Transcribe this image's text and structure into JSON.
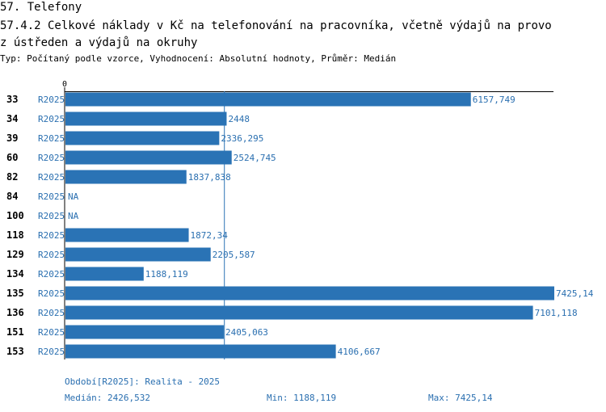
{
  "header": {
    "title": "57. Telefony",
    "subtitle_line1": "57.4.2 Celkové náklady v Kč na telefonování na pracovníka, včetně výdajů na provo",
    "subtitle_line2": "z ústředen a výdajů na okruhy",
    "meta": "Typ: Počítaný podle vzorce, Vyhodnocení: Absolutní hodnoty, Průměr: Medián"
  },
  "chart_data": {
    "type": "bar",
    "orientation": "horizontal",
    "axis_zero_label": "0",
    "xlim": [
      0,
      7425.14
    ],
    "median": 2426.532,
    "rows": [
      {
        "id": "33",
        "period": "R2025",
        "value": 6157.749,
        "label": "6157,749"
      },
      {
        "id": "34",
        "period": "R2025",
        "value": 2448,
        "label": "2448"
      },
      {
        "id": "39",
        "period": "R2025",
        "value": 2336.295,
        "label": "2336,295"
      },
      {
        "id": "60",
        "period": "R2025",
        "value": 2524.745,
        "label": "2524,745"
      },
      {
        "id": "82",
        "period": "R2025",
        "value": 1837.838,
        "label": "1837,838"
      },
      {
        "id": "84",
        "period": "R2025",
        "value": null,
        "label": "NA"
      },
      {
        "id": "100",
        "period": "R2025",
        "value": null,
        "label": "NA"
      },
      {
        "id": "118",
        "period": "R2025",
        "value": 1872.34,
        "label": "1872,34"
      },
      {
        "id": "129",
        "period": "R2025",
        "value": 2205.587,
        "label": "2205,587"
      },
      {
        "id": "134",
        "period": "R2025",
        "value": 1188.119,
        "label": "1188,119"
      },
      {
        "id": "135",
        "period": "R2025",
        "value": 7425.14,
        "label": "7425,14"
      },
      {
        "id": "136",
        "period": "R2025",
        "value": 7101.118,
        "label": "7101,118"
      },
      {
        "id": "151",
        "period": "R2025",
        "value": 2405.063,
        "label": "2405,063"
      },
      {
        "id": "153",
        "period": "R2025",
        "value": 4106.667,
        "label": "4106,667"
      }
    ],
    "colors": {
      "bar": "#2a73b5",
      "text": "#2a6fb0",
      "axis": "#000000",
      "median_line": "#2a73b5"
    }
  },
  "footer": {
    "period_note": "Období[R2025]: Realita - 2025",
    "median": "Medián: 2426,532",
    "min": "Min: 1188,119",
    "max": "Max: 7425,14"
  }
}
